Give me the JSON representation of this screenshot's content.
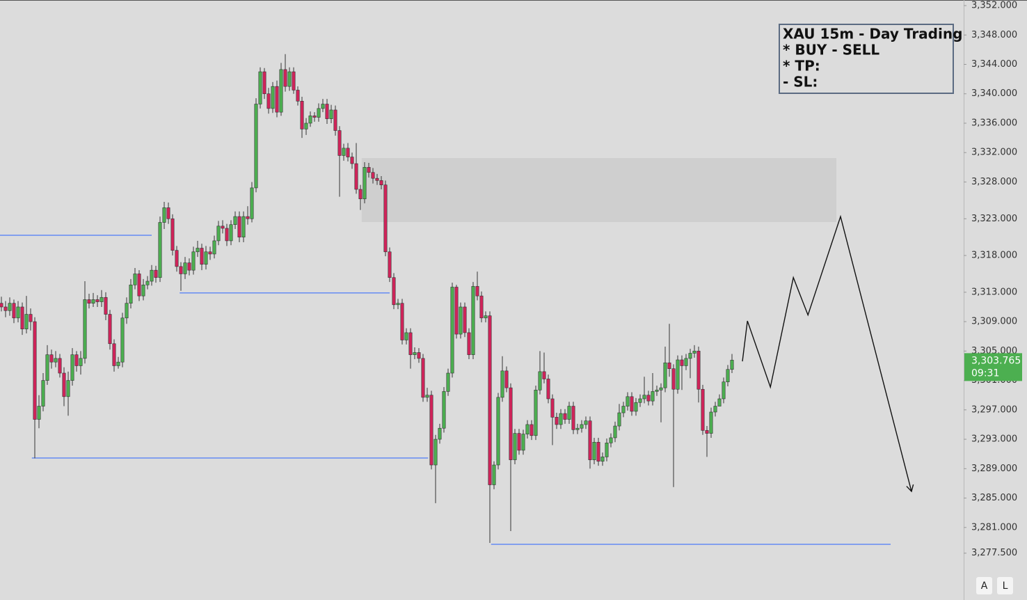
{
  "chart_data": {
    "type": "candlestick",
    "up_color": "#4caf50",
    "down_color": "#d0245a",
    "ylim": [
      3271.13,
      3352.76
    ],
    "yticks": [
      {
        "value": 3352,
        "label": "3,352.000"
      },
      {
        "value": 3348,
        "label": "3,348.000"
      },
      {
        "value": 3344,
        "label": "3,344.000"
      },
      {
        "value": 3340,
        "label": "3,340.000"
      },
      {
        "value": 3336,
        "label": "3,336.000"
      },
      {
        "value": 3332,
        "label": "3,332.000"
      },
      {
        "value": 3328,
        "label": "3,328.000"
      },
      {
        "value": 3323,
        "label": "3,323.000"
      },
      {
        "value": 3318,
        "label": "3,318.000"
      },
      {
        "value": 3313,
        "label": "3,313.000"
      },
      {
        "value": 3309,
        "label": "3,309.000"
      },
      {
        "value": 3305,
        "label": "3,305.000"
      },
      {
        "value": 3301,
        "label": "3,301.000"
      },
      {
        "value": 3297,
        "label": "3,297.000"
      },
      {
        "value": 3293,
        "label": "3,293.000"
      },
      {
        "value": 3289,
        "label": "3,289.000"
      },
      {
        "value": 3285,
        "label": "3,285.000"
      },
      {
        "value": 3281,
        "label": "3,281.000"
      },
      {
        "value": 3277.5,
        "label": "3,277.500"
      }
    ],
    "grid": false,
    "open": [
      3311.5,
      3311,
      3310.5,
      3311.5,
      3309.5,
      3311,
      3308,
      3310,
      3309,
      3295.7,
      3297.5,
      3301,
      3304.5,
      3303.5,
      3304,
      3302,
      3298.8,
      3301,
      3304.5,
      3303,
      3304,
      3312,
      3311.5,
      3312,
      3311.7,
      3312.3,
      3310,
      3306,
      3303,
      3303.5,
      3309.5,
      3311.5,
      3314,
      3315.5,
      3312.5,
      3314,
      3314.5,
      3316,
      3315,
      3322.5,
      3324.5,
      3323,
      3318.7,
      3316.5,
      3315.5,
      3317,
      3316,
      3318.5,
      3319,
      3316.8,
      3318.5,
      3318.2,
      3320,
      3322,
      3321.7,
      3320,
      3322.2,
      3323.3,
      3320.5,
      3323.3,
      3323,
      3327.2,
      3338.6,
      3343,
      3340,
      3338,
      3341,
      3337.5,
      3343.3,
      3341,
      3343,
      3340.5,
      3339,
      3335.2,
      3336,
      3337,
      3336.8,
      3338,
      3338.6,
      3336.6,
      3337.8,
      3335,
      3331.6,
      3332.6,
      3331.4,
      3330.5,
      3327,
      3325.7,
      3330,
      3329.3,
      3328.5,
      3328.2,
      3327.6,
      3318.5,
      3315,
      3311.3,
      3311.5,
      3306.5,
      3307.5,
      3304.5,
      3304.8,
      3304,
      3298.7,
      3299,
      3289.5,
      3293,
      3294.5,
      3299.5,
      3302,
      3313.7,
      3307.3,
      3311,
      3307.5,
      3304.5,
      3313.8,
      3312.5,
      3309.5,
      3309.8,
      3286.8,
      3289.5,
      3298.7,
      3302.3,
      3300,
      3290.2,
      3293.8,
      3291.5,
      3293.7,
      3295,
      3293.5,
      3299.7,
      3302.2,
      3301.2,
      3298.5,
      3296,
      3295,
      3296.5,
      3295.7,
      3297.5,
      3294.3,
      3294.5,
      3295,
      3295.5,
      3290.2,
      3292.6,
      3290,
      3290.6,
      3292.5,
      3293.2,
      3294.8,
      3296.6,
      3297.5,
      3298.8,
      3296.8,
      3298,
      3298.5,
      3299,
      3298.2,
      3299.5,
      3299.7,
      3300,
      3303.4,
      3302.6,
      3299.8,
      3303.8,
      3303,
      3304,
      3304.7,
      3305,
      3299.8,
      3294.2,
      3293.8,
      3296.7,
      3297.5,
      3298.5,
      3300.8,
      3302.5
    ],
    "high": [
      3312.4,
      3311.8,
      3312.3,
      3312,
      3311.8,
      3311.6,
      3312.5,
      3310.8,
      3309.6,
      3299,
      3302,
      3305.8,
      3305.2,
      3305,
      3304.6,
      3302.8,
      3302.2,
      3305.4,
      3305,
      3305,
      3314.5,
      3312.8,
      3312.9,
      3312.6,
      3313.3,
      3313,
      3310.6,
      3306.6,
      3304.2,
      3310.2,
      3312.3,
      3314.8,
      3316.3,
      3316,
      3314.8,
      3315.2,
      3316.7,
      3316.6,
      3323.3,
      3325.3,
      3325.2,
      3323.6,
      3319.3,
      3317.1,
      3317.8,
      3317.6,
      3319.2,
      3320,
      3319.6,
      3319.3,
      3319.2,
      3320.7,
      3322.7,
      3322.8,
      3322.3,
      3322.8,
      3324,
      3324,
      3324,
      3324.7,
      3328,
      3339.4,
      3343.6,
      3343.5,
      3340.8,
      3341.6,
      3341.8,
      3344.2,
      3345.4,
      3343.6,
      3343.6,
      3341,
      3339.6,
      3336.7,
      3337.6,
      3337.5,
      3338.7,
      3339.3,
      3339.3,
      3338.5,
      3338.4,
      3335.6,
      3333.2,
      3333.3,
      3332,
      3333.3,
      3327.6,
      3330.7,
      3330.6,
      3329.9,
      3329.1,
      3328.8,
      3328.2,
      3319.1,
      3315.6,
      3312.1,
      3312.1,
      3308.1,
      3308.1,
      3305.5,
      3305.4,
      3304.6,
      3300,
      3299.6,
      3293.6,
      3295.1,
      3300.1,
      3302.6,
      3314.3,
      3314,
      3311.6,
      3311.6,
      3308.1,
      3314.4,
      3315.8,
      3313.1,
      3310.4,
      3310.4,
      3290,
      3299.3,
      3304.3,
      3302.9,
      3300.6,
      3294.4,
      3294.4,
      3294.3,
      3295.6,
      3295.6,
      3300.3,
      3305,
      3304.8,
      3301.8,
      3299.1,
      3296.6,
      3297.1,
      3297.1,
      3298.1,
      3298.1,
      3295.1,
      3295.6,
      3296.1,
      3296.1,
      3293.2,
      3293.2,
      3291.2,
      3293.1,
      3293.8,
      3295.4,
      3297.8,
      3298.1,
      3299.4,
      3299.4,
      3298.6,
      3299.1,
      3301.5,
      3299.6,
      3302,
      3300.3,
      3300.6,
      3305.6,
      3308.7,
      3303.2,
      3304.4,
      3304.4,
      3304.6,
      3305.3,
      3305.8,
      3305.6,
      3300.4,
      3294.8,
      3297.3,
      3298.1,
      3299.1,
      3301.4,
      3303.1,
      3304.6
    ],
    "low": [
      3310.4,
      3309.6,
      3309.8,
      3308.8,
      3308.9,
      3307.2,
      3307.4,
      3307.8,
      3290.4,
      3294.5,
      3296.8,
      3300.4,
      3302.6,
      3302.8,
      3301.4,
      3297.5,
      3296.2,
      3300.3,
      3302.2,
      3301.8,
      3303.3,
      3310.8,
      3311,
      3311,
      3311,
      3309.2,
      3305.2,
      3302.2,
      3302.6,
      3302.8,
      3308.7,
      3310.8,
      3313.4,
      3311.8,
      3311.9,
      3313.4,
      3313.9,
      3314.3,
      3314.4,
      3321.6,
      3322.3,
      3318,
      3315.8,
      3313.2,
      3314.8,
      3315.3,
      3315.4,
      3317.8,
      3316,
      3316.1,
      3317.4,
      3317.6,
      3319.4,
      3321,
      3319.3,
      3319.4,
      3321.6,
      3319.8,
      3319.8,
      3322.2,
      3322.5,
      3326.6,
      3338,
      3339.3,
      3337.3,
      3337.4,
      3336.8,
      3337,
      3340.3,
      3340.4,
      3340,
      3338.4,
      3334,
      3334.4,
      3335.5,
      3336.2,
      3336.2,
      3337.5,
      3335.9,
      3336,
      3334.3,
      3326,
      3330.9,
      3330.8,
      3329.8,
      3326.4,
      3324.2,
      3325.1,
      3328.6,
      3327.8,
      3327.6,
      3327,
      3317.9,
      3314.4,
      3310.7,
      3310.7,
      3305.9,
      3305.9,
      3302.6,
      3303.9,
      3303.4,
      3298.1,
      3298.1,
      3288.9,
      3284.3,
      3292.4,
      3293.9,
      3298.9,
      3301.4,
      3306.7,
      3306.7,
      3306.9,
      3303.9,
      3303.9,
      3311.9,
      3308.9,
      3308.9,
      3278.9,
      3286.2,
      3288.9,
      3298.1,
      3299.4,
      3280.5,
      3289.6,
      3290.9,
      3290.9,
      3293.1,
      3292.9,
      3292.9,
      3299.1,
      3300.6,
      3297.9,
      3292.2,
      3294.4,
      3294.4,
      3295.1,
      3295.1,
      3293.7,
      3293.7,
      3293.9,
      3294.4,
      3289,
      3289.6,
      3289.4,
      3289.4,
      3290,
      3291.9,
      3292.6,
      3294.2,
      3296,
      3296.9,
      3296.2,
      3296.2,
      3297.4,
      3297.9,
      3297.6,
      3297.6,
      3298.9,
      3295.3,
      3299.4,
      3301.5,
      3286.5,
      3299.2,
      3299.7,
      3302.4,
      3301.3,
      3304.1,
      3298,
      3293.6,
      3290.6,
      3293.2,
      3296.1,
      3297.9,
      3297.9,
      3300.2,
      3302
    ],
    "close": [
      3311,
      3310.5,
      3311.5,
      3309.5,
      3311,
      3308,
      3310,
      3309,
      3295.7,
      3297.5,
      3301,
      3304.5,
      3303.5,
      3304,
      3302,
      3298.8,
      3301,
      3304.5,
      3303,
      3304,
      3312,
      3311.5,
      3312,
      3311.7,
      3312.3,
      3310,
      3306,
      3303,
      3303.5,
      3309.5,
      3311.5,
      3314,
      3315.5,
      3312.5,
      3314,
      3314.5,
      3316,
      3315,
      3322.5,
      3324.5,
      3323,
      3318.7,
      3316.5,
      3315.5,
      3317,
      3316,
      3318.5,
      3319,
      3316.8,
      3318.5,
      3318.2,
      3320,
      3322,
      3321.7,
      3320,
      3322.2,
      3323.3,
      3320.5,
      3323.3,
      3323,
      3327.2,
      3338.6,
      3343,
      3340,
      3338,
      3341,
      3337.5,
      3343.3,
      3341,
      3343,
      3340.5,
      3339,
      3335.2,
      3336,
      3337,
      3336.8,
      3338,
      3338.6,
      3336.6,
      3337.8,
      3335,
      3331.6,
      3332.6,
      3331.4,
      3330.5,
      3327,
      3325.7,
      3330,
      3329.3,
      3328.5,
      3328.2,
      3327.6,
      3318.5,
      3315,
      3311.3,
      3311.5,
      3306.5,
      3307.5,
      3304.5,
      3304.8,
      3304,
      3298.7,
      3299,
      3289.5,
      3293,
      3294.5,
      3299.5,
      3302,
      3313.7,
      3307.3,
      3311,
      3307.5,
      3304.5,
      3313.8,
      3312.5,
      3309.5,
      3309.8,
      3286.8,
      3289.5,
      3298.7,
      3302.3,
      3300,
      3290.2,
      3293.8,
      3291.5,
      3293.7,
      3295,
      3293.5,
      3299.7,
      3302.2,
      3301.2,
      3298.5,
      3296,
      3295,
      3296.5,
      3295.7,
      3297.5,
      3294.3,
      3294.5,
      3295,
      3295.5,
      3290.2,
      3292.6,
      3290,
      3290.6,
      3292.5,
      3293.2,
      3294.8,
      3296.6,
      3297.5,
      3298.8,
      3296.8,
      3298,
      3298.5,
      3299,
      3298.2,
      3299.5,
      3299.7,
      3300,
      3303.4,
      3302.6,
      3299.8,
      3303.8,
      3303,
      3304,
      3304.7,
      3305,
      3299.8,
      3294.2,
      3293.8,
      3296.7,
      3297.5,
      3298.5,
      3300.8,
      3302.5,
      3303.765
    ],
    "last_value_label": "3,303.765",
    "countdown": "09:31",
    "levels": [
      3320.75,
      3312.9,
      3290.45,
      3278.7
    ],
    "level_color": "#2962ff",
    "zone": [
      3322.55,
      3331.26
    ],
    "projection": [
      3303.6,
      3309.1,
      3300.1,
      3315.0,
      3309.9,
      3323.3,
      3285.9
    ],
    "note": [
      "XAU 15m - Day Trading",
      "* BUY - SELL",
      "* TP:",
      "- SL:"
    ]
  },
  "toolbar": [
    "A",
    "L"
  ]
}
